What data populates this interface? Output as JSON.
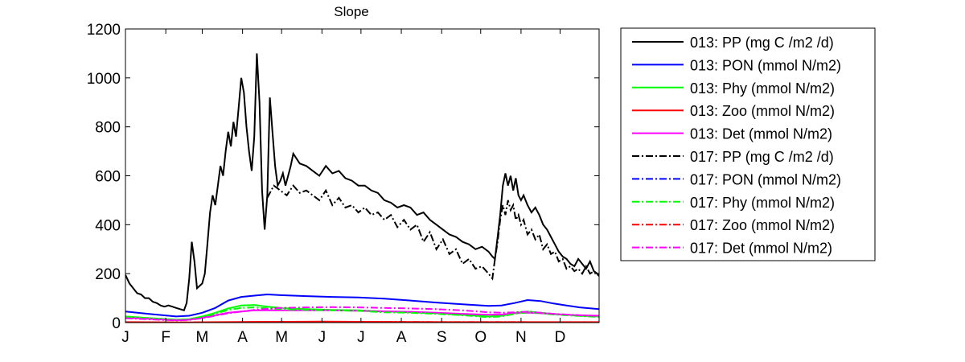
{
  "chart_data": {
    "type": "line",
    "title": "Slope",
    "xlabel": "",
    "ylabel": "",
    "xlim": [
      1,
      365
    ],
    "ylim": [
      0,
      1200
    ],
    "yticks": [
      0,
      200,
      400,
      600,
      800,
      1000,
      1200
    ],
    "xticks": [
      {
        "label": "J",
        "day": 1
      },
      {
        "label": "F",
        "day": 32
      },
      {
        "label": "M",
        "day": 60
      },
      {
        "label": "A",
        "day": 91
      },
      {
        "label": "M",
        "day": 121
      },
      {
        "label": "J",
        "day": 152
      },
      {
        "label": "J",
        "day": 182
      },
      {
        "label": "A",
        "day": 213
      },
      {
        "label": "S",
        "day": 244
      },
      {
        "label": "O",
        "day": 274
      },
      {
        "label": "N",
        "day": 305
      },
      {
        "label": "D",
        "day": 335
      }
    ],
    "grid": false,
    "legend": "outside-right",
    "series": [
      {
        "name": "013: PP (mg C /m2 /d)",
        "color": "#000000",
        "dash": "solid",
        "x": [
          1,
          4,
          7,
          10,
          13,
          16,
          19,
          22,
          25,
          28,
          31,
          34,
          37,
          40,
          43,
          46,
          48,
          50,
          52,
          54,
          56,
          58,
          60,
          62,
          64,
          66,
          68,
          70,
          72,
          74,
          76,
          78,
          80,
          82,
          84,
          86,
          88,
          90,
          92,
          94,
          96,
          98,
          100,
          102,
          104,
          106,
          108,
          110,
          112,
          114,
          116,
          118,
          120,
          122,
          124,
          126,
          128,
          130,
          135,
          140,
          145,
          150,
          155,
          160,
          165,
          170,
          175,
          180,
          185,
          190,
          195,
          200,
          205,
          210,
          215,
          220,
          225,
          230,
          235,
          240,
          245,
          250,
          255,
          260,
          265,
          270,
          275,
          280,
          283,
          285,
          287,
          289,
          291,
          293,
          295,
          297,
          299,
          301,
          303,
          305,
          307,
          310,
          313,
          316,
          319,
          322,
          325,
          328,
          331,
          334,
          337,
          340,
          343,
          346,
          349,
          352,
          355,
          358,
          361,
          365
        ],
        "y": [
          195,
          160,
          140,
          120,
          115,
          100,
          100,
          85,
          80,
          70,
          65,
          70,
          65,
          60,
          55,
          50,
          80,
          180,
          330,
          250,
          140,
          150,
          160,
          200,
          320,
          450,
          520,
          480,
          560,
          640,
          600,
          700,
          780,
          720,
          820,
          760,
          880,
          1000,
          940,
          800,
          700,
          620,
          760,
          1100,
          900,
          540,
          380,
          520,
          920,
          780,
          640,
          560,
          580,
          610,
          560,
          600,
          640,
          690,
          650,
          640,
          620,
          600,
          640,
          610,
          620,
          590,
          580,
          560,
          560,
          540,
          530,
          500,
          490,
          470,
          480,
          470,
          440,
          450,
          420,
          400,
          380,
          360,
          350,
          330,
          320,
          300,
          310,
          290,
          270,
          260,
          350,
          440,
          560,
          610,
          560,
          600,
          540,
          590,
          520,
          500,
          520,
          480,
          450,
          470,
          440,
          400,
          380,
          350,
          320,
          290,
          270,
          260,
          240,
          230,
          260,
          240,
          220,
          250,
          210,
          195
        ]
      },
      {
        "name": "013: PON (mmol N/m2)",
        "color": "#0000ff",
        "dash": "solid",
        "x": [
          1,
          20,
          40,
          50,
          60,
          70,
          80,
          90,
          100,
          110,
          120,
          140,
          160,
          180,
          200,
          220,
          240,
          260,
          280,
          290,
          300,
          310,
          320,
          330,
          340,
          350,
          365
        ],
        "y": [
          45,
          35,
          25,
          28,
          40,
          60,
          90,
          105,
          110,
          115,
          112,
          108,
          105,
          103,
          98,
          90,
          82,
          75,
          68,
          70,
          80,
          92,
          88,
          78,
          70,
          62,
          55
        ]
      },
      {
        "name": "013: Phy (mmol N/m2)",
        "color": "#00ff00",
        "dash": "solid",
        "x": [
          1,
          20,
          40,
          50,
          60,
          70,
          80,
          90,
          100,
          110,
          120,
          140,
          160,
          180,
          200,
          220,
          240,
          260,
          280,
          290,
          300,
          310,
          320,
          330,
          340,
          350,
          365
        ],
        "y": [
          25,
          18,
          12,
          14,
          25,
          40,
          58,
          70,
          72,
          65,
          60,
          55,
          52,
          50,
          45,
          42,
          38,
          32,
          25,
          28,
          40,
          45,
          40,
          35,
          32,
          28,
          25
        ]
      },
      {
        "name": "013: Zoo (mmol N/m2)",
        "color": "#ff0000",
        "dash": "solid",
        "x": [
          1,
          50,
          100,
          150,
          200,
          250,
          300,
          365
        ],
        "y": [
          2,
          1,
          3,
          4,
          3,
          2,
          2,
          2
        ]
      },
      {
        "name": "013: Det (mmol N/m2)",
        "color": "#ff00ff",
        "dash": "solid",
        "x": [
          1,
          20,
          40,
          50,
          60,
          70,
          80,
          90,
          100,
          110,
          120,
          140,
          160,
          180,
          200,
          220,
          240,
          260,
          280,
          290,
          300,
          310,
          320,
          330,
          340,
          350,
          365
        ],
        "y": [
          20,
          15,
          10,
          12,
          20,
          30,
          40,
          45,
          50,
          50,
          50,
          50,
          50,
          48,
          46,
          44,
          40,
          36,
          32,
          33,
          38,
          40,
          38,
          35,
          32,
          30,
          28
        ]
      },
      {
        "name": "017: PP (mg C /m2 /d)",
        "color": "#000000",
        "dash": "dashdot",
        "x": [
          110,
          115,
          120,
          125,
          130,
          135,
          140,
          145,
          150,
          155,
          160,
          165,
          170,
          175,
          180,
          185,
          190,
          195,
          200,
          205,
          210,
          215,
          220,
          225,
          230,
          235,
          240,
          245,
          250,
          255,
          260,
          265,
          270,
          275,
          280,
          283,
          285,
          287,
          289,
          291,
          293,
          295,
          297,
          299,
          301,
          303,
          305,
          307,
          310,
          313,
          316,
          319,
          322,
          325,
          328,
          331,
          334,
          337,
          340,
          343,
          346,
          349,
          352,
          355,
          358,
          361,
          365
        ],
        "y": [
          510,
          560,
          540,
          520,
          560,
          530,
          540,
          520,
          500,
          540,
          480,
          510,
          470,
          480,
          450,
          470,
          440,
          450,
          420,
          440,
          390,
          420,
          380,
          400,
          330,
          370,
          300,
          340,
          280,
          300,
          240,
          260,
          220,
          230,
          200,
          180,
          260,
          330,
          420,
          480,
          440,
          500,
          460,
          480,
          420,
          440,
          400,
          420,
          360,
          380,
          340,
          360,
          300,
          320,
          280,
          290,
          250,
          260,
          220,
          230,
          210,
          220,
          200,
          230,
          200,
          210,
          190
        ]
      },
      {
        "name": "017: PON (mmol N/m2)",
        "color": "#0000ff",
        "dash": "dashdot",
        "x": [
          1,
          365
        ],
        "y": [
          null,
          null
        ]
      },
      {
        "name": "017: Phy (mmol N/m2)",
        "color": "#00ff00",
        "dash": "dashdot",
        "x": [
          1,
          20,
          40,
          50,
          60,
          70,
          80,
          90,
          100,
          110,
          120,
          140,
          160,
          180,
          200,
          220,
          240,
          260,
          280,
          290,
          300,
          310,
          320,
          330,
          340,
          350,
          365
        ],
        "y": [
          22,
          16,
          11,
          13,
          22,
          36,
          52,
          60,
          62,
          58,
          55,
          52,
          50,
          48,
          42,
          40,
          36,
          30,
          22,
          25,
          36,
          42,
          38,
          33,
          30,
          27,
          23
        ]
      },
      {
        "name": "017: Zoo (mmol N/m2)",
        "color": "#ff0000",
        "dash": "dashdot",
        "x": [
          1,
          50,
          100,
          150,
          200,
          250,
          300,
          365
        ],
        "y": [
          1,
          1,
          2,
          3,
          3,
          2,
          2,
          1
        ]
      },
      {
        "name": "017: Det (mmol N/m2)",
        "color": "#ff00ff",
        "dash": "dashdot",
        "x": [
          1,
          20,
          40,
          50,
          60,
          70,
          80,
          90,
          100,
          110,
          120,
          140,
          160,
          180,
          200,
          220,
          240,
          260,
          280,
          290,
          300,
          310,
          320,
          330,
          340,
          350,
          365
        ],
        "y": [
          18,
          13,
          9,
          11,
          18,
          28,
          38,
          45,
          52,
          56,
          60,
          62,
          63,
          62,
          60,
          58,
          55,
          50,
          42,
          40,
          42,
          44,
          40,
          36,
          33,
          30,
          27
        ]
      }
    ]
  }
}
